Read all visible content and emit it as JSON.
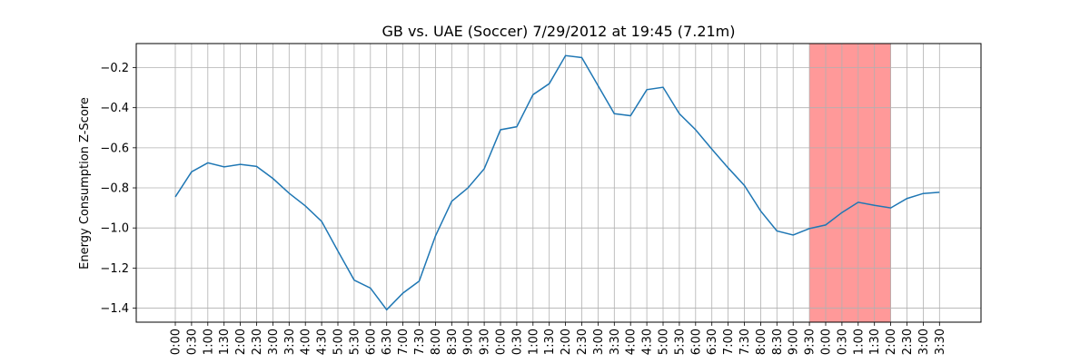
{
  "chart_data": {
    "type": "line",
    "title": "GB vs. UAE (Soccer) 7/29/2012 at 19:45 (7.21m)",
    "xlabel": "",
    "ylabel": "Energy Consumption Z-Score",
    "ylim": [
      -1.47,
      -0.08
    ],
    "yticks": [
      -1.4,
      -1.2,
      -1.0,
      -0.8,
      -0.6,
      -0.4,
      -0.2
    ],
    "ytick_labels": [
      "−1.4",
      "−1.2",
      "−1.0",
      "−0.8",
      "−0.6",
      "−0.4",
      "−0.2"
    ],
    "categories": [
      "0:00",
      "0:30",
      "1:00",
      "1:30",
      "2:00",
      "2:30",
      "3:00",
      "3:30",
      "4:00",
      "4:30",
      "5:00",
      "5:30",
      "6:00",
      "6:30",
      "7:00",
      "7:30",
      "8:00",
      "8:30",
      "9:00",
      "9:30",
      "0:00",
      "0:30",
      "1:00",
      "1:30",
      "2:00",
      "2:30",
      "3:00",
      "3:30",
      "4:00",
      "4:30",
      "5:00",
      "5:30",
      "6:00",
      "6:30",
      "7:00",
      "7:30",
      "8:00",
      "8:30",
      "9:00",
      "9:30",
      "0:00",
      "0:30",
      "1:00",
      "1:30",
      "2:00",
      "2:30",
      "3:00",
      "3:30"
    ],
    "values": [
      -0.845,
      -0.72,
      -0.675,
      -0.695,
      -0.683,
      -0.693,
      -0.753,
      -0.827,
      -0.89,
      -0.967,
      -1.115,
      -1.26,
      -1.3,
      -1.408,
      -1.325,
      -1.265,
      -1.04,
      -0.867,
      -0.8,
      -0.705,
      -0.51,
      -0.495,
      -0.335,
      -0.28,
      -0.14,
      -0.15,
      -0.29,
      -0.43,
      -0.44,
      -0.31,
      -0.298,
      -0.43,
      -0.51,
      -0.607,
      -0.7,
      -0.788,
      -0.915,
      -1.015,
      -1.035,
      -1.003,
      -0.985,
      -0.923,
      -0.872,
      -0.887,
      -0.9,
      -0.853,
      -0.828,
      -0.822
    ],
    "highlight": {
      "start_index": 39,
      "end_index": 44,
      "color": "#ff9999"
    },
    "line_color": "#1f77b4",
    "grid": true
  }
}
